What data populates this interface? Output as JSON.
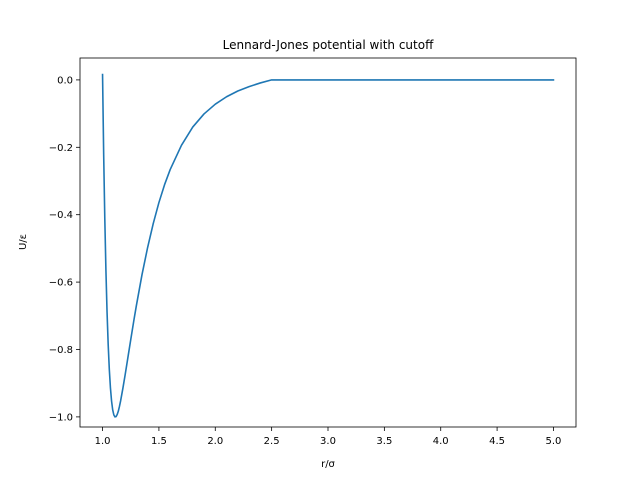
{
  "chart_data": {
    "type": "line",
    "title": "Lennard-Jones potential with cutoff",
    "xlabel": "r/σ",
    "ylabel": "U/ε",
    "xlim": [
      0.8,
      5.2
    ],
    "ylim": [
      -1.03,
      0.065
    ],
    "xticks": [
      1.0,
      1.5,
      2.0,
      2.5,
      3.0,
      3.5,
      4.0,
      4.5,
      5.0
    ],
    "xtick_labels": [
      "1.0",
      "1.5",
      "2.0",
      "2.5",
      "3.0",
      "3.5",
      "4.0",
      "4.5",
      "5.0"
    ],
    "yticks": [
      0.0,
      -0.2,
      -0.4,
      -0.6,
      -0.8,
      -1.0
    ],
    "ytick_labels": [
      "0.0",
      "−0.2",
      "−0.4",
      "−0.6",
      "−0.8",
      "−1.0"
    ],
    "grid": false,
    "colors": {
      "line": "#1f77b4"
    },
    "series": [
      {
        "x": [
          1.0,
          1.01,
          1.02,
          1.03,
          1.04,
          1.05,
          1.06,
          1.07,
          1.08,
          1.09,
          1.1,
          1.11,
          1.12,
          1.13,
          1.14,
          1.15,
          1.16,
          1.18,
          1.2,
          1.22,
          1.25,
          1.28,
          1.3,
          1.35,
          1.4,
          1.45,
          1.5,
          1.55,
          1.6,
          1.7,
          1.8,
          1.9,
          2.0,
          2.1,
          2.2,
          2.3,
          2.4,
          2.5,
          3.0,
          3.5,
          4.0,
          4.5,
          5.0
        ],
        "y": [
          0.016,
          -0.221,
          -0.412,
          -0.566,
          -0.689,
          -0.785,
          -0.859,
          -0.914,
          -0.953,
          -0.979,
          -0.994,
          -1.0,
          -0.999,
          -0.993,
          -0.983,
          -0.969,
          -0.953,
          -0.916,
          -0.876,
          -0.834,
          -0.771,
          -0.709,
          -0.67,
          -0.578,
          -0.497,
          -0.426,
          -0.364,
          -0.311,
          -0.266,
          -0.194,
          -0.14,
          -0.101,
          -0.072,
          -0.05,
          -0.033,
          -0.02,
          -0.009,
          0.0,
          0.0,
          0.0,
          0.0,
          0.0,
          0.0
        ]
      }
    ]
  }
}
